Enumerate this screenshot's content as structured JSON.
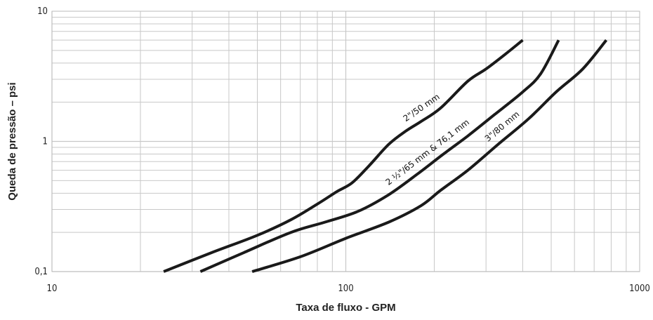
{
  "chart_data": {
    "type": "line",
    "xscale": "log",
    "yscale": "log",
    "xlim": [
      10,
      1000
    ],
    "ylim": [
      0.1,
      10
    ],
    "xlabel": "Taxa de fluxo - GPM",
    "ylabel": "Queda de pressão – psi",
    "xticks": [
      {
        "value": 10,
        "label": "10"
      },
      {
        "value": 100,
        "label": "100"
      },
      {
        "value": 1000,
        "label": "1000"
      }
    ],
    "yticks": [
      {
        "value": 0.1,
        "label": "0,1"
      },
      {
        "value": 1,
        "label": "1"
      },
      {
        "value": 10,
        "label": "10"
      }
    ],
    "grid": true,
    "series": [
      {
        "name": "2\"/50 mm",
        "color": "#1a1a1a",
        "x": [
          24,
          35,
          50,
          65,
          80,
          93,
          105,
          120,
          140,
          160,
          180,
          210,
          260,
          300,
          350,
          400
        ],
        "y": [
          0.1,
          0.14,
          0.19,
          0.25,
          0.33,
          0.41,
          0.48,
          0.65,
          0.95,
          1.2,
          1.42,
          1.8,
          2.9,
          3.6,
          4.7,
          6.0
        ]
      },
      {
        "name": "2 ½\"/65 mm & 76,1 mm",
        "color": "#1a1a1a",
        "x": [
          32,
          45,
          65,
          85,
          110,
          140,
          175,
          215,
          260,
          320,
          400,
          460,
          530
        ],
        "y": [
          0.1,
          0.14,
          0.2,
          0.24,
          0.29,
          0.39,
          0.56,
          0.8,
          1.1,
          1.6,
          2.4,
          3.3,
          6.0
        ]
      },
      {
        "name": "3\"/80 mm",
        "color": "#1a1a1a",
        "x": [
          48,
          70,
          100,
          140,
          180,
          210,
          260,
          330,
          420,
          520,
          640,
          770
        ],
        "y": [
          0.1,
          0.13,
          0.18,
          0.24,
          0.32,
          0.42,
          0.6,
          0.95,
          1.5,
          2.4,
          3.6,
          6.0
        ]
      }
    ]
  }
}
